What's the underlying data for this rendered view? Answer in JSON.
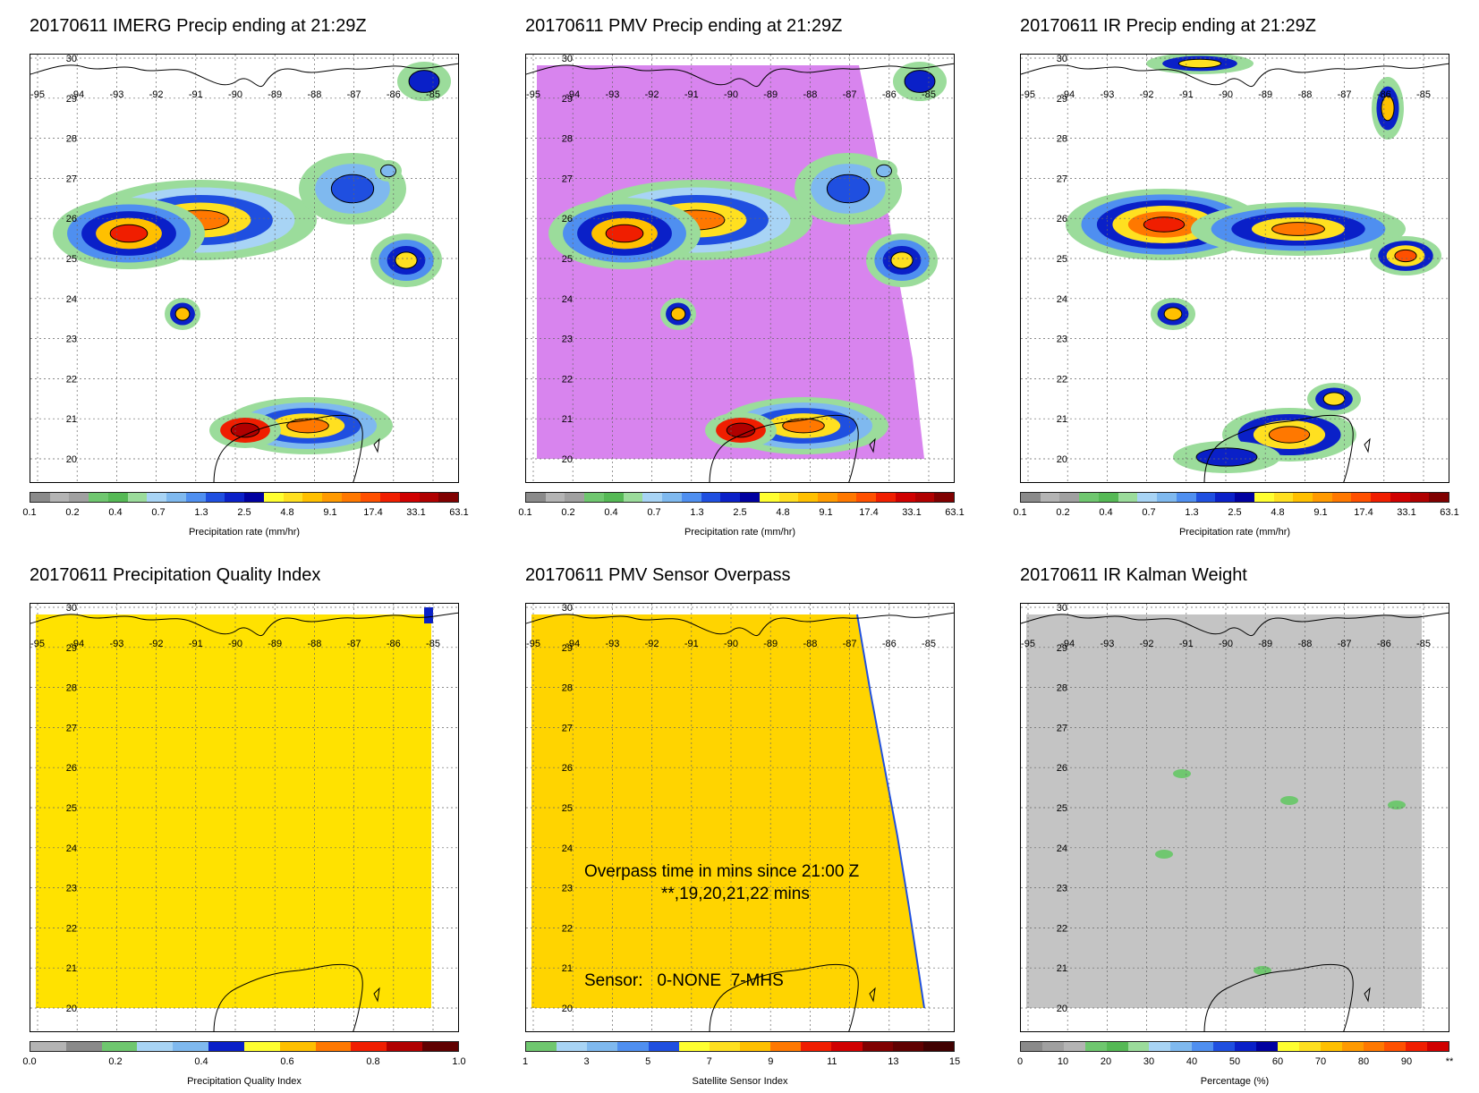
{
  "lon_labels": [
    "-95",
    "-94",
    "-93",
    "-92",
    "-91",
    "-90",
    "-89",
    "-88",
    "-87",
    "-86",
    "-85"
  ],
  "lat_labels": [
    "30",
    "29",
    "28",
    "27",
    "26",
    "25",
    "24",
    "23",
    "22",
    "21",
    "20"
  ],
  "panels": [
    {
      "title": "20170611 IMERG Precip ending at 21:29Z",
      "field": "precip",
      "colorbar": {
        "colors": [
          "#8a8a8a",
          "#b4b4b4",
          "#a0a0a0",
          "#6fc76f",
          "#55b955",
          "#9bdc9b",
          "#a8d4f5",
          "#7fb9ef",
          "#4f8ff0",
          "#1f4fe0",
          "#0a20c8",
          "#0000a0",
          "#ffff30",
          "#ffe020",
          "#ffc000",
          "#ff9a00",
          "#ff7800",
          "#ff5000",
          "#f01e00",
          "#d00000",
          "#b00000",
          "#800000"
        ],
        "ticks": [
          "0.1",
          "0.2",
          "0.4",
          "0.7",
          "1.3",
          "2.5",
          "4.8",
          "9.1",
          "17.4",
          "33.1",
          "63.1"
        ],
        "label": "Precipitation rate (mm/hr)"
      }
    },
    {
      "title": "20170611 PMV Precip ending at 21:29Z",
      "field": "precip_pmv",
      "colorbar": {
        "colors": [
          "#8a8a8a",
          "#b4b4b4",
          "#a0a0a0",
          "#6fc76f",
          "#55b955",
          "#9bdc9b",
          "#a8d4f5",
          "#7fb9ef",
          "#4f8ff0",
          "#1f4fe0",
          "#0a20c8",
          "#0000a0",
          "#ffff30",
          "#ffe020",
          "#ffc000",
          "#ff9a00",
          "#ff7800",
          "#ff5000",
          "#f01e00",
          "#d00000",
          "#b00000",
          "#800000"
        ],
        "ticks": [
          "0.1",
          "0.2",
          "0.4",
          "0.7",
          "1.3",
          "2.5",
          "4.8",
          "9.1",
          "17.4",
          "33.1",
          "63.1"
        ],
        "label": "Precipitation rate (mm/hr)"
      }
    },
    {
      "title": "20170611 IR Precip ending at 21:29Z",
      "field": "precip_ir",
      "colorbar": {
        "colors": [
          "#8a8a8a",
          "#b4b4b4",
          "#a0a0a0",
          "#6fc76f",
          "#55b955",
          "#9bdc9b",
          "#a8d4f5",
          "#7fb9ef",
          "#4f8ff0",
          "#1f4fe0",
          "#0a20c8",
          "#0000a0",
          "#ffff30",
          "#ffe020",
          "#ffc000",
          "#ff9a00",
          "#ff7800",
          "#ff5000",
          "#f01e00",
          "#d00000",
          "#b00000",
          "#800000"
        ],
        "ticks": [
          "0.1",
          "0.2",
          "0.4",
          "0.7",
          "1.3",
          "2.5",
          "4.8",
          "9.1",
          "17.4",
          "33.1",
          "63.1"
        ],
        "label": "Precipitation rate (mm/hr)"
      }
    },
    {
      "title": "20170611 Precipitation Quality Index",
      "field": "quality",
      "colorbar": {
        "colors": [
          "#b4b4b4",
          "#8a8a8a",
          "#6fc76f",
          "#a8d4f5",
          "#7fb9ef",
          "#0a20c8",
          "#ffff30",
          "#ffc000",
          "#ff7800",
          "#f01e00",
          "#b00000",
          "#600000"
        ],
        "ticks": [
          "0.0",
          "0.2",
          "0.4",
          "0.6",
          "0.8",
          "1.0"
        ],
        "label": "Precipitation Quality Index"
      }
    },
    {
      "title": "20170611 PMV Sensor Overpass",
      "field": "sensor",
      "colorbar": {
        "colors": [
          "#6fc76f",
          "#a8d4f5",
          "#7fb9ef",
          "#4f8ff0",
          "#1f4fe0",
          "#ffff30",
          "#ffe020",
          "#ffc000",
          "#ff7800",
          "#f01e00",
          "#d00000",
          "#800000",
          "#600000",
          "#400000"
        ],
        "ticks": [
          "1",
          "3",
          "5",
          "7",
          "9",
          "11",
          "13",
          "15"
        ],
        "label": "Satellite Sensor Index"
      },
      "annotation": {
        "line1": "Overpass time in mins since 21:00 Z",
        "line2": "**,19,20,21,22 mins",
        "line3": "Sensor:   0-NONE  7-MHS"
      }
    },
    {
      "title": "20170611 IR Kalman Weight",
      "field": "kalman",
      "colorbar": {
        "colors": [
          "#8a8a8a",
          "#a0a0a0",
          "#b4b4b4",
          "#6fc76f",
          "#55b955",
          "#9bdc9b",
          "#a8d4f5",
          "#7fb9ef",
          "#4f8ff0",
          "#1f4fe0",
          "#0a20c8",
          "#0000a0",
          "#ffff30",
          "#ffe020",
          "#ffc000",
          "#ff9a00",
          "#ff7800",
          "#ff5000",
          "#f01e00",
          "#d00000"
        ],
        "ticks": [
          "0",
          "10",
          "20",
          "30",
          "40",
          "50",
          "60",
          "70",
          "80",
          "90",
          "**"
        ],
        "label": "Percentage (%)"
      }
    }
  ]
}
